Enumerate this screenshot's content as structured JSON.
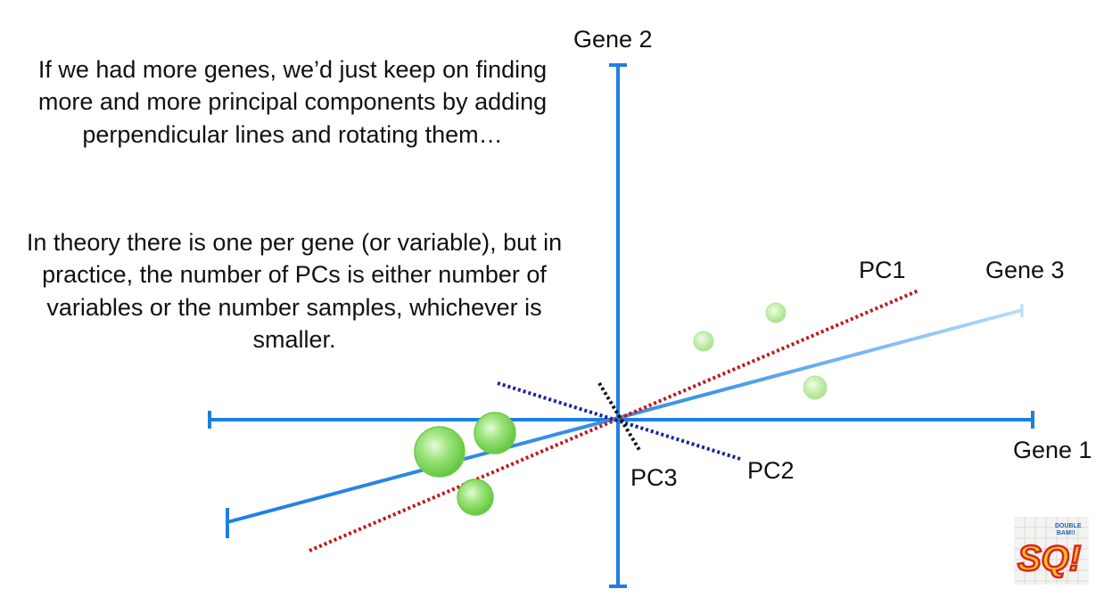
{
  "slide": {
    "paragraph_1": "If we had more genes, we’d just keep on finding more and more principal components by adding perpendicular lines and rotating them…",
    "paragraph_2": "In theory there is one per gene (or variable), but in practice, the number of PCs is either number of variables or the number samples, whichever is smaller."
  },
  "axes": {
    "gene1": "Gene 1",
    "gene2": "Gene 2",
    "gene3": "Gene 3"
  },
  "principal_components": {
    "pc1": "PC1",
    "pc2": "PC2",
    "pc3": "PC3"
  },
  "logo": {
    "text_line1": "DOUBLE",
    "text_line2": "BAM!!",
    "text_main": "SQ!"
  },
  "colors": {
    "axis_blue": "#1e7fe0",
    "pc1_red": "#c0181b",
    "pc2_navy": "#16239a",
    "pc3_black": "#111111",
    "point_green": "#7fd65a"
  }
}
